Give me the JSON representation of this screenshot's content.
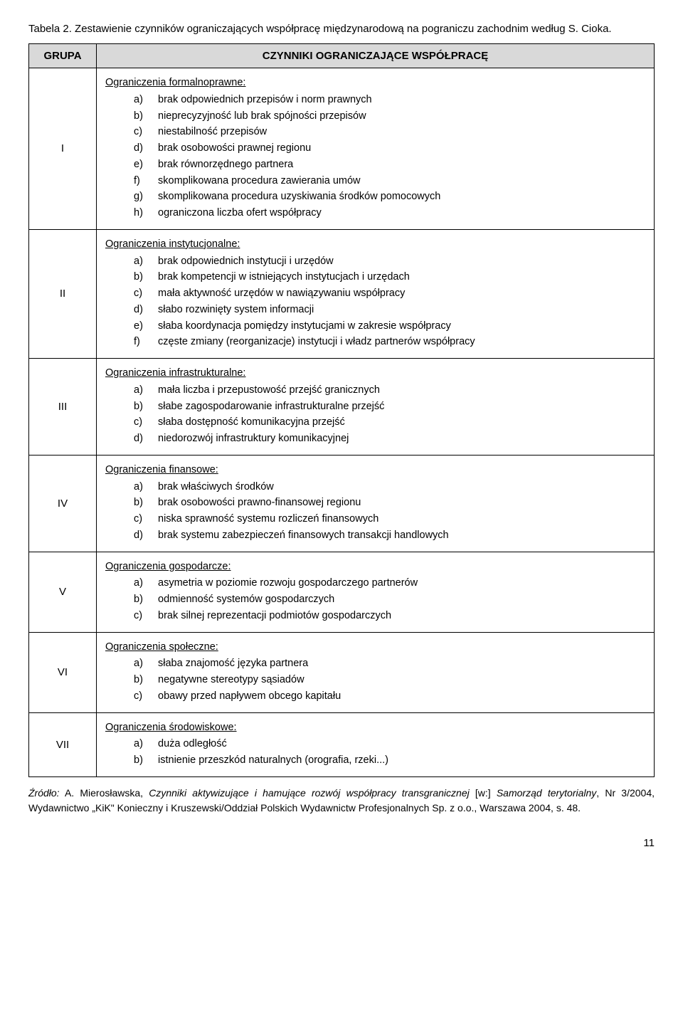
{
  "caption": "Tabela 2. Zestawienie czynników ograniczających współpracę międzynarodową na pograniczu zachodnim według S. Cioka.",
  "header": {
    "group": "GRUPA",
    "factors": "CZYNNIKI OGRANICZAJĄCE WSPÓŁPRACĘ"
  },
  "rows": [
    {
      "group": "I",
      "title": "Ograniczenia formalnoprawne:",
      "items": [
        "brak odpowiednich przepisów i norm prawnych",
        "nieprecyzyjność lub brak spójności przepisów",
        "niestabilność przepisów",
        "brak osobowości prawnej regionu",
        "brak równorzędnego partnera",
        "skomplikowana procedura zawierania umów",
        "skomplikowana procedura uzyskiwania środków pomocowych",
        "ograniczona liczba ofert współpracy"
      ]
    },
    {
      "group": "II",
      "title": "Ograniczenia instytucjonalne:",
      "items": [
        "brak odpowiednich instytucji i urzędów",
        "brak kompetencji w istniejących instytucjach i urzędach",
        "mała aktywność urzędów w nawiązywaniu współpracy",
        "słabo rozwinięty system informacji",
        "słaba koordynacja pomiędzy instytucjami w zakresie współpracy",
        "częste zmiany (reorganizacje) instytucji i władz partnerów współpracy"
      ]
    },
    {
      "group": "III",
      "title": "Ograniczenia infrastrukturalne:",
      "items": [
        "mała liczba i przepustowość przejść granicznych",
        "słabe zagospodarowanie infrastrukturalne przejść",
        "słaba dostępność komunikacyjna przejść",
        "niedorozwój infrastruktury komunikacyjnej"
      ]
    },
    {
      "group": "IV",
      "title": "Ograniczenia finansowe:",
      "items": [
        "brak właściwych środków",
        "brak osobowości prawno-finansowej regionu",
        "niska sprawność systemu rozliczeń finansowych",
        "brak systemu zabezpieczeń finansowych transakcji handlowych"
      ]
    },
    {
      "group": "V",
      "title": "Ograniczenia gospodarcze:",
      "items": [
        "asymetria w poziomie rozwoju gospodarczego partnerów",
        "odmienność systemów gospodarczych",
        "brak silnej reprezentacji podmiotów gospodarczych"
      ]
    },
    {
      "group": "VI",
      "title": "Ograniczenia społeczne:",
      "items": [
        "słaba znajomość języka partnera",
        "negatywne stereotypy sąsiadów",
        "obawy przed napływem obcego kapitału"
      ]
    },
    {
      "group": "VII",
      "title": "Ograniczenia środowiskowe:",
      "items": [
        "duża odległość",
        "istnienie przeszkód naturalnych (orografia, rzeki...)"
      ]
    }
  ],
  "source": {
    "label": "Źródło:",
    "author": " A. Mierosławska, ",
    "title_italic": "Czynniki aktywizujące i hamujące rozwój współpracy transgranicznej",
    "rest": " [w:] ",
    "series_italic": "Samorząd terytorialny",
    "tail": ", Nr 3/2004, Wydawnictwo „KiK\" Konieczny i Kruszewski/Oddział Polskich Wydawnictw Profesjonalnych Sp. z o.o., Warszawa 2004, s. 48."
  },
  "page_number": "11",
  "letters": [
    "a)",
    "b)",
    "c)",
    "d)",
    "e)",
    "f)",
    "g)",
    "h)"
  ]
}
